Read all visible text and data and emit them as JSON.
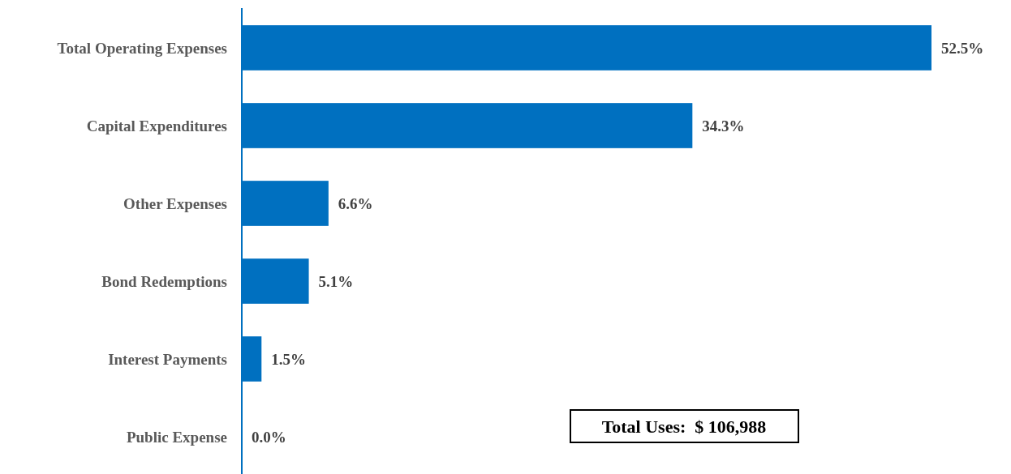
{
  "chart_data": {
    "type": "bar",
    "orientation": "horizontal",
    "categories": [
      "Total Operating Expenses",
      "Capital Expenditures",
      "Other Expenses",
      "Bond Redemptions",
      "Interest Payments",
      "Public Expense"
    ],
    "values": [
      52.5,
      34.3,
      6.6,
      5.1,
      1.5,
      0.0
    ],
    "value_labels": [
      "52.5%",
      "34.3%",
      "6.6%",
      "5.1%",
      "1.5%",
      "0.0%"
    ],
    "color": "#0070c0",
    "xlim": [
      0,
      52.5
    ],
    "annotations": [
      "Total Uses:  $ 106,988"
    ]
  }
}
